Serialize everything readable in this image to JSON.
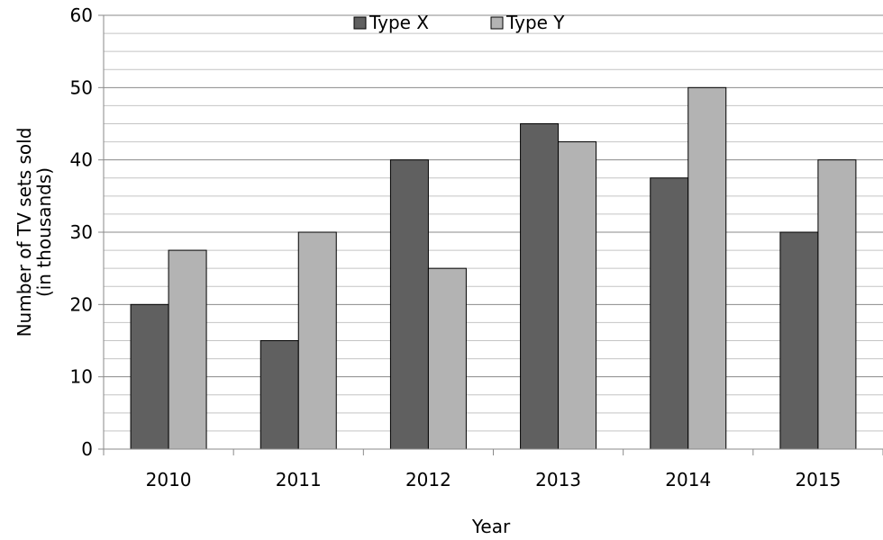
{
  "chart_data": {
    "type": "bar",
    "title": "",
    "xlabel": "Year",
    "ylabel": "Number of TV sets sold (in thousands)",
    "ylabel_lines": [
      "Number of TV sets sold",
      "(in thousands)"
    ],
    "categories": [
      "2010",
      "2011",
      "2012",
      "2013",
      "2014",
      "2015"
    ],
    "series": [
      {
        "name": "Type X",
        "values": [
          20,
          15,
          40,
          45,
          37.5,
          30
        ],
        "color": "#606060"
      },
      {
        "name": "Type Y",
        "values": [
          27.5,
          30,
          25,
          42.5,
          50,
          40
        ],
        "color": "#b3b3b3"
      }
    ],
    "ylim": [
      0,
      60
    ],
    "y_ticks": [
      "0",
      "10",
      "20",
      "30",
      "40",
      "50",
      "60"
    ],
    "grid": true,
    "minor_grid_step": 2.5,
    "legend_position": "top-center"
  }
}
